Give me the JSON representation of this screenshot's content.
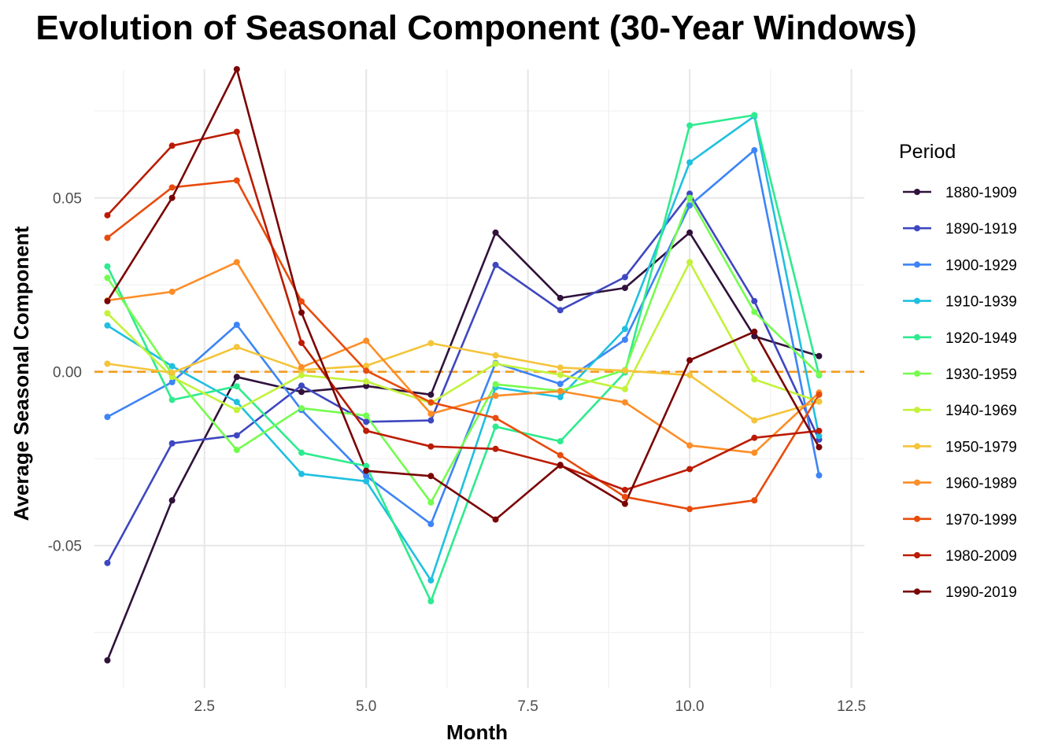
{
  "chart_data": {
    "type": "line",
    "title": "Evolution of Seasonal Component (30-Year Windows)",
    "xlabel": "Month",
    "ylabel": "Average Seasonal Component",
    "xlim": [
      0.8,
      12.7
    ],
    "ylim": [
      -0.091,
      0.087
    ],
    "x_ticks": [
      2.5,
      5.0,
      7.5,
      10.0,
      12.5
    ],
    "x_tick_labels": [
      "2.5",
      "5.0",
      "7.5",
      "10.0",
      "12.5"
    ],
    "y_ticks": [
      -0.05,
      0.0,
      0.05
    ],
    "y_tick_labels": [
      "-0.05",
      "0.00",
      "0.05"
    ],
    "reference_line": {
      "y": 0,
      "style": "dashed",
      "color": "#F39C1F"
    },
    "grid": true,
    "legend": {
      "title": "Period",
      "position": "right"
    },
    "x": [
      1,
      2,
      3,
      4,
      5,
      6,
      7,
      8,
      9,
      10,
      11,
      12
    ],
    "series": [
      {
        "name": "1880-1909",
        "color": "#30123B",
        "values": [
          -0.083,
          -0.037,
          -0.0015,
          -0.0058,
          -0.0041,
          -0.0066,
          0.04,
          0.0212,
          0.0241,
          0.04,
          0.0102,
          0.0045
        ]
      },
      {
        "name": "1890-1919",
        "color": "#3E47C1",
        "values": [
          -0.055,
          -0.0206,
          -0.0183,
          -0.004,
          -0.0144,
          -0.014,
          0.0307,
          0.0177,
          0.0272,
          0.0512,
          0.0203,
          -0.0195
        ]
      },
      {
        "name": "1900-1929",
        "color": "#3D84F6",
        "values": [
          -0.013,
          -0.003,
          0.0135,
          -0.011,
          -0.03,
          -0.0438,
          0.0025,
          -0.0035,
          0.0092,
          0.0478,
          0.0637,
          -0.0298
        ]
      },
      {
        "name": "1910-1939",
        "color": "#1FC0DF",
        "values": [
          0.0133,
          0.0016,
          -0.0087,
          -0.0294,
          -0.0315,
          -0.06,
          -0.0045,
          -0.0073,
          0.0123,
          0.0602,
          0.0735,
          -0.0185
        ]
      },
      {
        "name": "1920-1949",
        "color": "#2DEB8E",
        "values": [
          0.0303,
          -0.0081,
          -0.0042,
          -0.0233,
          -0.0271,
          -0.066,
          -0.0158,
          -0.02,
          -0.0002,
          0.0708,
          0.0738,
          -0.001
        ]
      },
      {
        "name": "1930-1959",
        "color": "#74FD4E",
        "values": [
          0.027,
          -0.0006,
          -0.0225,
          -0.0105,
          -0.0126,
          -0.0376,
          -0.0036,
          -0.0055,
          0.0005,
          0.05,
          0.0172,
          -0.0008
        ]
      },
      {
        "name": "1940-1969",
        "color": "#C3F23A",
        "values": [
          0.0168,
          -0.0015,
          -0.011,
          -0.001,
          -0.0028,
          -0.009,
          0.0023,
          -0.0009,
          -0.005,
          0.0315,
          -0.0022,
          -0.0086
        ]
      },
      {
        "name": "1950-1979",
        "color": "#F4C43A",
        "values": [
          0.0023,
          -0.0003,
          0.0071,
          0.0005,
          0.0017,
          0.0082,
          0.0047,
          0.0012,
          0.0003,
          -0.001,
          -0.014,
          -0.0086
        ]
      },
      {
        "name": "1960-1989",
        "color": "#FD8D27",
        "values": [
          0.0205,
          0.023,
          0.0315,
          0.0013,
          0.0089,
          -0.0121,
          -0.0069,
          -0.0056,
          -0.0088,
          -0.0212,
          -0.0233,
          -0.006
        ]
      },
      {
        "name": "1970-1999",
        "color": "#E84B0C",
        "values": [
          0.0385,
          0.053,
          0.055,
          0.0202,
          0.0003,
          -0.0088,
          -0.0133,
          -0.024,
          -0.036,
          -0.0395,
          -0.037,
          -0.0066
        ]
      },
      {
        "name": "1980-2009",
        "color": "#BB1C03",
        "values": [
          0.045,
          0.065,
          0.069,
          0.0083,
          -0.017,
          -0.0215,
          -0.0222,
          -0.027,
          -0.034,
          -0.028,
          -0.019,
          -0.017
        ]
      },
      {
        "name": "1990-2019",
        "color": "#7A0403",
        "values": [
          0.0203,
          0.05,
          0.087,
          0.017,
          -0.0285,
          -0.03,
          -0.0425,
          -0.0268,
          -0.038,
          0.0033,
          0.0115,
          -0.0217
        ]
      }
    ]
  }
}
